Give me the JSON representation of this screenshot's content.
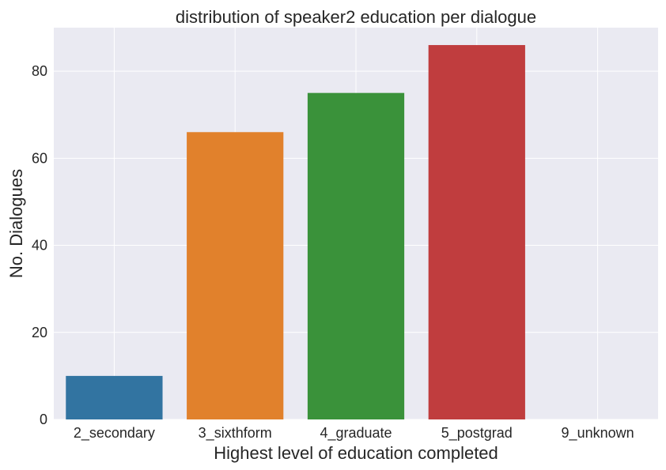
{
  "chart_data": {
    "type": "bar",
    "title": "distribution of speaker2 education per dialogue",
    "xlabel": "Highest level of education completed",
    "ylabel": "No. Dialogues",
    "categories": [
      "2_secondary",
      "3_sixthform",
      "4_graduate",
      "5_postgrad",
      "9_unknown"
    ],
    "values": [
      10,
      66,
      75,
      86,
      0
    ],
    "colors": [
      "#3274a1",
      "#e1812c",
      "#3a923a",
      "#c03d3e",
      "#9372b2"
    ],
    "yticks": [
      0,
      20,
      40,
      60,
      80
    ],
    "ylim": [
      0,
      90
    ],
    "grid": true,
    "background": "#eaeaf2"
  }
}
